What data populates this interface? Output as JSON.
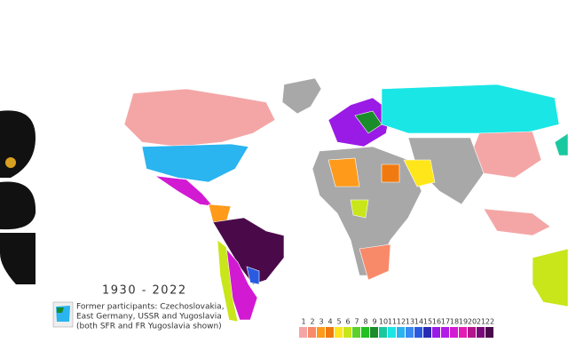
{
  "map": {
    "period": "1930 - 2022",
    "note_lines": [
      "Former participants: Czechoslovakia,",
      "East Germany, USSR and Yugoslavia",
      "(both SFR and FR Yugoslavia shown)"
    ],
    "legend": [
      {
        "label": 1,
        "color": "#f4a6a6"
      },
      {
        "label": 2,
        "color": "#f88a6a"
      },
      {
        "label": 3,
        "color": "#ff9a1a"
      },
      {
        "label": 4,
        "color": "#f07a10"
      },
      {
        "label": 5,
        "color": "#ffe61a"
      },
      {
        "label": 6,
        "color": "#c8e61a"
      },
      {
        "label": 7,
        "color": "#5ad22a"
      },
      {
        "label": 8,
        "color": "#22c022"
      },
      {
        "label": 9,
        "color": "#1a8c2a"
      },
      {
        "label": 10,
        "color": "#1ac8a0"
      },
      {
        "label": 11,
        "color": "#1ae6e6"
      },
      {
        "label": 12,
        "color": "#2ab4f0"
      },
      {
        "label": 13,
        "color": "#3a8af0"
      },
      {
        "label": 14,
        "color": "#2a5ae0"
      },
      {
        "label": 15,
        "color": "#2a2ab4"
      },
      {
        "label": 16,
        "color": "#9a1ae6"
      },
      {
        "label": 17,
        "color": "#b41ae6"
      },
      {
        "label": 18,
        "color": "#d21ad2"
      },
      {
        "label": 19,
        "color": "#e61ab4"
      },
      {
        "label": 20,
        "color": "#b4148c"
      },
      {
        "label": 21,
        "color": "#7a0a7a"
      },
      {
        "label": 22,
        "color": "#4a0a4a"
      }
    ]
  }
}
